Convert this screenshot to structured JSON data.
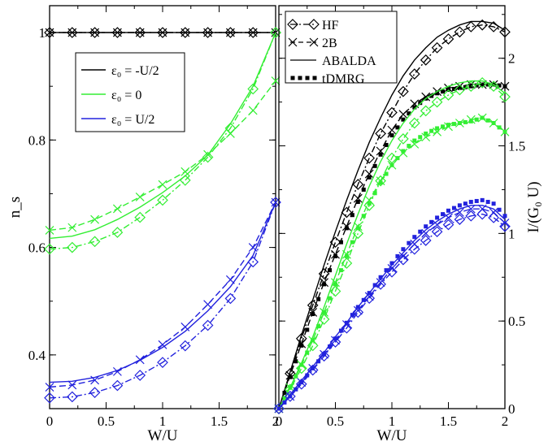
{
  "chart_data": [
    {
      "type": "line",
      "panel": "left",
      "xlabel": "W/U",
      "ylabel": "n_s",
      "xlim": [
        0,
        2
      ],
      "ylim": [
        0.3,
        1.05
      ],
      "xticks": [
        0,
        0.5,
        1,
        1.5,
        2
      ],
      "xtick_labels": [
        "0",
        "0.5",
        "1",
        "1.5",
        "2"
      ],
      "yticks": [
        0.4,
        0.6,
        0.8,
        1
      ],
      "ytick_labels": [
        "0.4",
        "0.6",
        "0.8",
        "1"
      ],
      "y_axis_side": "left",
      "grid": false,
      "legend": {
        "placement": "upper-left",
        "entries": [
          {
            "label": "ε₀ = -U/2",
            "color": "#000000"
          },
          {
            "label": "ε₀ =  0",
            "color": "#33ee33"
          },
          {
            "label": "ε₀ = U/2",
            "color": "#2222dd"
          }
        ]
      },
      "x": [
        0,
        0.2,
        0.4,
        0.6,
        0.8,
        1.0,
        1.2,
        1.4,
        1.6,
        1.8,
        2.0
      ],
      "series": [
        {
          "group": "ε₀ = -U/2",
          "method": "HF",
          "color": "#000000",
          "dash": "dashdot",
          "marker": "diamond",
          "values": [
            1,
            1,
            1,
            1,
            1,
            1,
            1,
            1,
            1,
            1,
            1
          ]
        },
        {
          "group": "ε₀ = -U/2",
          "method": "2B",
          "color": "#000000",
          "dash": "dashed",
          "marker": "x",
          "values": [
            1,
            1,
            1,
            1,
            1,
            1,
            1,
            1,
            1,
            1,
            1
          ]
        },
        {
          "group": "ε₀ = -U/2",
          "method": "ABALDA",
          "color": "#000000",
          "dash": "solid",
          "marker": "none",
          "values": [
            1,
            1,
            1,
            1,
            1,
            1,
            1,
            1,
            1,
            1,
            1
          ]
        },
        {
          "group": "ε₀ =  0",
          "method": "HF",
          "color": "#33ee33",
          "dash": "dashdot",
          "marker": "diamond",
          "values": [
            0.597,
            0.6,
            0.611,
            0.628,
            0.656,
            0.688,
            0.725,
            0.768,
            0.822,
            0.895,
            1.0
          ]
        },
        {
          "group": "ε₀ =  0",
          "method": "2B",
          "color": "#33ee33",
          "dash": "dashed",
          "marker": "x",
          "values": [
            0.632,
            0.637,
            0.652,
            0.672,
            0.694,
            0.717,
            0.741,
            0.773,
            0.812,
            0.855,
            0.91
          ]
        },
        {
          "group": "ε₀ =  0",
          "method": "ABALDA",
          "color": "#33ee33",
          "dash": "solid",
          "marker": "none",
          "values": [
            0.617,
            0.621,
            0.633,
            0.652,
            0.675,
            0.702,
            0.733,
            0.772,
            0.83,
            0.9,
            1.0
          ]
        },
        {
          "group": "ε₀ = U/2",
          "method": "HF",
          "color": "#2222dd",
          "dash": "dashdot",
          "marker": "diamond",
          "values": [
            0.32,
            0.322,
            0.33,
            0.343,
            0.362,
            0.386,
            0.417,
            0.455,
            0.505,
            0.573,
            0.684
          ]
        },
        {
          "group": "ε₀ = U/2",
          "method": "2B",
          "color": "#2222dd",
          "dash": "dashed",
          "marker": "x",
          "values": [
            0.34,
            0.344,
            0.353,
            0.369,
            0.391,
            0.419,
            0.452,
            0.494,
            0.54,
            0.6,
            0.684
          ]
        },
        {
          "group": "ε₀ = U/2",
          "method": "ABALDA",
          "color": "#2222dd",
          "dash": "solid",
          "marker": "none",
          "values": [
            0.349,
            0.351,
            0.358,
            0.371,
            0.39,
            0.414,
            0.444,
            0.482,
            0.527,
            0.585,
            0.684
          ]
        }
      ]
    },
    {
      "type": "line",
      "panel": "right",
      "xlabel": "W/U",
      "ylabel": "I/(G₀ U)",
      "xlim": [
        0,
        2
      ],
      "ylim": [
        0,
        2.3
      ],
      "xticks": [
        0,
        0.5,
        1,
        1.5,
        2
      ],
      "xtick_labels": [
        "0",
        "0.5",
        "1",
        "1.5",
        "2"
      ],
      "yticks": [
        0,
        0.5,
        1,
        1.5,
        2
      ],
      "ytick_labels": [
        "0",
        "0.5",
        "1",
        "1.5",
        "2"
      ],
      "y_axis_side": "right",
      "grid": false,
      "legend": {
        "placement": "upper-left",
        "entries": [
          {
            "label": "HF",
            "style": "dashdot-diamond"
          },
          {
            "label": "2B",
            "style": "dashed-x"
          },
          {
            "label": "ABALDA",
            "style": "solid"
          },
          {
            "label": "tDMRG",
            "style": "dotted-squares"
          }
        ]
      },
      "x": [
        0,
        0.1,
        0.2,
        0.3,
        0.4,
        0.5,
        0.6,
        0.7,
        0.8,
        0.9,
        1.0,
        1.1,
        1.2,
        1.3,
        1.4,
        1.5,
        1.6,
        1.7,
        1.8,
        1.9,
        2.0
      ],
      "series": [
        {
          "group": "ε₀ = -U/2",
          "method": "HF",
          "color": "#000000",
          "dash": "dashdot",
          "marker": "diamond",
          "values": [
            0,
            0.2,
            0.4,
            0.59,
            0.77,
            0.95,
            1.12,
            1.28,
            1.43,
            1.57,
            1.69,
            1.81,
            1.91,
            1.99,
            2.06,
            2.11,
            2.15,
            2.18,
            2.19,
            2.18,
            2.15
          ]
        },
        {
          "group": "ε₀ = -U/2",
          "method": "2B",
          "color": "#000000",
          "dash": "dashed",
          "marker": "x",
          "values": [
            0,
            0.19,
            0.37,
            0.55,
            0.72,
            0.88,
            1.04,
            1.2,
            1.34,
            1.47,
            1.59,
            1.68,
            1.74,
            1.78,
            1.81,
            1.83,
            1.84,
            1.85,
            1.85,
            1.85,
            1.84
          ]
        },
        {
          "group": "ε₀ = -U/2",
          "method": "ABALDA",
          "color": "#000000",
          "dash": "solid",
          "marker": "none",
          "values": [
            0,
            0.21,
            0.42,
            0.62,
            0.82,
            1.01,
            1.19,
            1.36,
            1.52,
            1.66,
            1.79,
            1.9,
            1.99,
            2.06,
            2.12,
            2.16,
            2.19,
            2.21,
            2.21,
            2.2,
            2.16
          ]
        },
        {
          "group": "ε₀ = -U/2",
          "method": "tDMRG",
          "color": "#000000",
          "dash": "dotted",
          "marker": "square",
          "values": [
            0,
            0.18,
            0.36,
            0.54,
            0.71,
            0.87,
            1.03,
            1.18,
            1.32,
            1.45,
            1.56,
            1.65,
            1.72,
            1.77,
            1.8,
            1.82,
            1.83,
            1.84,
            1.85,
            1.85,
            1.84
          ]
        },
        {
          "group": "ε₀ =  0",
          "method": "HF",
          "color": "#33ee33",
          "dash": "dashdot",
          "marker": "diamond",
          "values": [
            0,
            0.11,
            0.23,
            0.36,
            0.51,
            0.67,
            0.83,
            1.0,
            1.16,
            1.3,
            1.43,
            1.54,
            1.63,
            1.7,
            1.75,
            1.79,
            1.82,
            1.84,
            1.86,
            1.84,
            1.78
          ]
        },
        {
          "group": "ε₀ =  0",
          "method": "2B",
          "color": "#33ee33",
          "dash": "dashed",
          "marker": "x",
          "values": [
            0,
            0.12,
            0.25,
            0.39,
            0.55,
            0.72,
            0.88,
            1.04,
            1.19,
            1.3,
            1.39,
            1.46,
            1.51,
            1.55,
            1.58,
            1.61,
            1.63,
            1.65,
            1.66,
            1.63,
            1.58
          ]
        },
        {
          "group": "ε₀ =  0",
          "method": "ABALDA",
          "color": "#33ee33",
          "dash": "solid",
          "marker": "none",
          "values": [
            0,
            0.12,
            0.26,
            0.41,
            0.58,
            0.76,
            0.94,
            1.11,
            1.27,
            1.41,
            1.53,
            1.63,
            1.71,
            1.77,
            1.81,
            1.84,
            1.86,
            1.87,
            1.87,
            1.85,
            1.8
          ]
        },
        {
          "group": "ε₀ =  0",
          "method": "tDMRG",
          "color": "#33ee33",
          "dash": "dotted",
          "marker": "square",
          "values": [
            0,
            0.12,
            0.25,
            0.39,
            0.55,
            0.71,
            0.87,
            1.03,
            1.17,
            1.29,
            1.39,
            1.47,
            1.53,
            1.57,
            1.6,
            1.62,
            1.63,
            1.64,
            1.66,
            1.63,
            1.58
          ]
        },
        {
          "group": "ε₀ = U/2",
          "method": "HF",
          "color": "#2222dd",
          "dash": "dashdot",
          "marker": "diamond",
          "values": [
            0,
            0.07,
            0.14,
            0.22,
            0.3,
            0.38,
            0.46,
            0.55,
            0.63,
            0.71,
            0.78,
            0.85,
            0.91,
            0.96,
            1.01,
            1.05,
            1.08,
            1.1,
            1.11,
            1.09,
            1.04
          ]
        },
        {
          "group": "ε₀ = U/2",
          "method": "2B",
          "color": "#2222dd",
          "dash": "dashed",
          "marker": "x",
          "values": [
            0,
            0.07,
            0.15,
            0.23,
            0.31,
            0.39,
            0.48,
            0.56,
            0.64,
            0.72,
            0.8,
            0.87,
            0.94,
            1.0,
            1.05,
            1.09,
            1.12,
            1.14,
            1.14,
            1.12,
            1.06
          ]
        },
        {
          "group": "ε₀ = U/2",
          "method": "ABALDA",
          "color": "#2222dd",
          "dash": "solid",
          "marker": "none",
          "values": [
            0,
            0.08,
            0.16,
            0.24,
            0.32,
            0.41,
            0.49,
            0.58,
            0.66,
            0.74,
            0.82,
            0.89,
            0.96,
            1.02,
            1.07,
            1.11,
            1.14,
            1.16,
            1.16,
            1.14,
            1.08
          ]
        },
        {
          "group": "ε₀ = U/2",
          "method": "tDMRG",
          "color": "#2222dd",
          "dash": "dotted",
          "marker": "square",
          "values": [
            0,
            0.07,
            0.15,
            0.23,
            0.31,
            0.4,
            0.49,
            0.58,
            0.66,
            0.75,
            0.83,
            0.91,
            0.98,
            1.04,
            1.09,
            1.13,
            1.16,
            1.18,
            1.19,
            1.17,
            1.1
          ]
        }
      ]
    }
  ]
}
